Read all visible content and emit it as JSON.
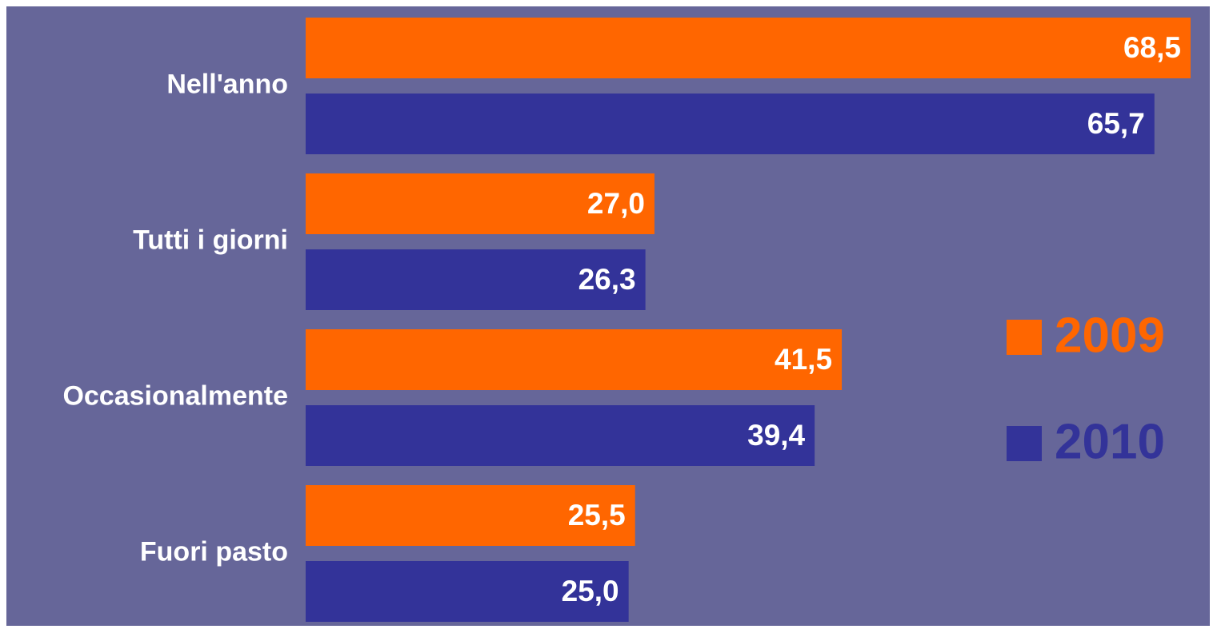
{
  "chart_data": {
    "type": "bar",
    "orientation": "horizontal",
    "categories": [
      "Nell'anno",
      "Tutti i giorni",
      "Occasionalmente",
      "Fuori pasto"
    ],
    "series": [
      {
        "name": "2009",
        "color": "#ff6600",
        "values": [
          68.5,
          27.0,
          41.5,
          25.5
        ],
        "value_labels": [
          "68,5",
          "27,0",
          "41,5",
          "25,5"
        ]
      },
      {
        "name": "2010",
        "color": "#333399",
        "values": [
          65.7,
          26.3,
          39.4,
          25.0
        ],
        "value_labels": [
          "65,7",
          "26,3",
          "39,4",
          "25,0"
        ]
      }
    ],
    "legend": "right",
    "background": "#666699"
  }
}
